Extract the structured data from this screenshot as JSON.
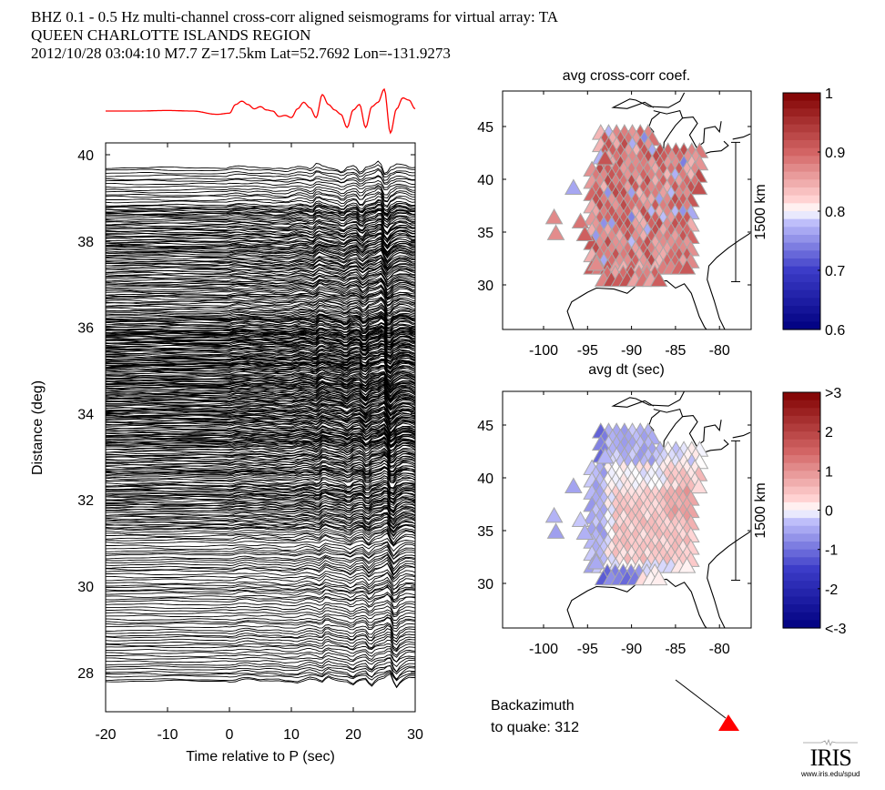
{
  "header": {
    "line1": "BHZ  0.1 - 0.5 Hz  multi-channel cross-corr aligned seismograms for virtual array: TA",
    "line2": "QUEEN CHARLOTTE ISLANDS REGION",
    "line3": "2012/10/28  03:04:10  M7.7  Z=17.5km Lat=52.7692 Lon=-131.9273"
  },
  "backazimuth": {
    "line1": "Backazimuth",
    "line2": "to quake:  312",
    "value": 312,
    "marker_color": "#ff0000"
  },
  "logo": {
    "name": "IRIS",
    "url": "www.iris.edu/spud"
  },
  "chart_data": [
    {
      "type": "line",
      "name": "record-section",
      "title": "",
      "xlabel": "Time relative to P (sec)",
      "ylabel": "Distance (deg)",
      "xlim": [
        -20,
        30
      ],
      "ylim": [
        27.2,
        40.3
      ],
      "xticks": [
        -20,
        -10,
        0,
        10,
        20,
        30
      ],
      "yticks": [
        28,
        30,
        32,
        34,
        36,
        38,
        40
      ],
      "trace_color": "#000000",
      "stack_trace_color": "#ff0000",
      "trace_distance_range_deg": [
        27.8,
        39.7
      ],
      "description": "Dense set of aligned seismogram traces plotted by epicentral distance; red stacked trace shown above the section",
      "stack_trace": {
        "x": [
          -20,
          -15,
          -10,
          -6,
          -2,
          0,
          1,
          2,
          3,
          4,
          5,
          6,
          7,
          8,
          9,
          10,
          11,
          12,
          13,
          14,
          15,
          16,
          17,
          18,
          19,
          20,
          21,
          22,
          23,
          24,
          25,
          26,
          27,
          28,
          29,
          30
        ],
        "y": [
          0,
          0,
          0.05,
          0,
          -0.3,
          -0.2,
          0.6,
          0.9,
          0.6,
          0.2,
          0.4,
          0.1,
          0.0,
          -0.5,
          -0.4,
          -0.6,
          0.2,
          0.8,
          0.3,
          -0.6,
          1.5,
          0.6,
          0.1,
          -0.3,
          -1.5,
          0.1,
          0.6,
          -1.5,
          0.4,
          0.8,
          2.0,
          -2.0,
          0.2,
          1.2,
          1.0,
          0.2
        ]
      }
    },
    {
      "type": "scatter",
      "name": "map-avg-cross-corr-coef",
      "title": "avg cross-corr coef.",
      "xlabel": "",
      "ylabel": "",
      "xlim": [
        -104.7,
        -76.5
      ],
      "ylim": [
        25.6,
        48.2
      ],
      "xticks": [
        -100,
        -95,
        -90,
        -85,
        -80
      ],
      "yticks": [
        30,
        35,
        40,
        45
      ],
      "marker": "triangle",
      "scale_bar": "1500 km",
      "colorbar": {
        "min": 0.6,
        "max": 1,
        "ticks": [
          "0.6",
          "0.7",
          "0.8",
          "0.9",
          "1"
        ],
        "colormap": "blue-white-red"
      },
      "value_summary": "most stations 0.82-0.92, a few bluish 0.72-0.78 near -90/-85"
    },
    {
      "type": "scatter",
      "name": "map-avg-dt",
      "title": "avg dt (sec)",
      "xlabel": "",
      "ylabel": "",
      "xlim": [
        -104.7,
        -76.5
      ],
      "ylim": [
        25.6,
        48.2
      ],
      "xticks": [
        -100,
        -95,
        -90,
        -85,
        -80
      ],
      "yticks": [
        30,
        35,
        40,
        45
      ],
      "marker": "triangle",
      "scale_bar": "1500 km",
      "colorbar": {
        "min": -3,
        "max": 3,
        "ticks": [
          "<-3",
          "-2",
          "-1",
          "0",
          "1",
          "2",
          ">3"
        ],
        "colormap": "blue-white-red"
      },
      "value_summary": "negative (blue) in north-west and Gulf coast, positive (red) in central and east"
    }
  ]
}
